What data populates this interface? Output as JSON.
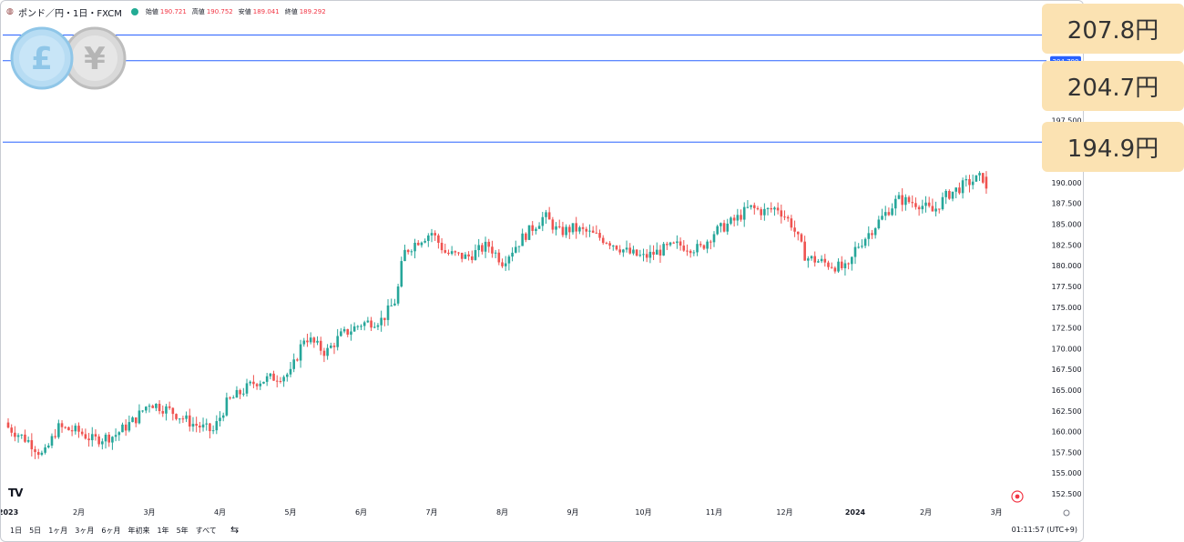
{
  "header": {
    "symbol": "ポンド／円・1日・FXCM",
    "open_label": "始値",
    "open": "190.721",
    "high_label": "高値",
    "high": "190.752",
    "low_label": "安値",
    "low": "189.041",
    "close_label": "終値",
    "close": "189.292",
    "icon": "pound-yen-flag-icon"
  },
  "footer": {
    "ranges": [
      "1日",
      "5日",
      "1ヶ月",
      "3ヶ月",
      "6ヶ月",
      "年初来",
      "1年",
      "5年",
      "すべて"
    ],
    "compare_icon": "calendar-range-icon",
    "clock": "01:11:57 (UTC+9)"
  },
  "logo": {
    "text": "TV",
    "icon": "tradingview-logo-icon"
  },
  "coins": {
    "pound": "£",
    "yen": "¥"
  },
  "callouts": [
    {
      "label": "207.8円",
      "color": "#fbe2b2"
    },
    {
      "label": "204.7円",
      "color": "#fbe2b2"
    },
    {
      "label": "194.9円",
      "color": "#fbe2b2"
    }
  ],
  "chart_data": {
    "type": "candlestick",
    "up_color": "#26a69a",
    "down_color": "#ef5350",
    "hline_color": "#2962ff",
    "ylim": [
      151.3,
      209.5
    ],
    "y_ticks": [
      152.5,
      155.0,
      157.5,
      160.0,
      162.5,
      165.0,
      167.5,
      170.0,
      172.5,
      175.0,
      177.5,
      180.0,
      182.5,
      185.0,
      187.5,
      190.0,
      197.5
    ],
    "y_tick_labels": [
      "152.500",
      "155.000",
      "157.500",
      "160.000",
      "162.500",
      "165.000",
      "167.500",
      "170.000",
      "172.500",
      "175.000",
      "177.500",
      "180.000",
      "182.500",
      "185.000",
      "187.500",
      "190.000",
      "197.500"
    ],
    "horizontal_lines": [
      207.8,
      204.7,
      194.9
    ],
    "price_badge": {
      "value": 204.7,
      "label": "204.700"
    },
    "x_ticks": [
      {
        "label": "2023",
        "bold": true,
        "month": 0
      },
      {
        "label": "2月",
        "month": 1
      },
      {
        "label": "3月",
        "month": 2
      },
      {
        "label": "4月",
        "month": 3
      },
      {
        "label": "5月",
        "month": 4
      },
      {
        "label": "6月",
        "month": 5
      },
      {
        "label": "7月",
        "month": 6
      },
      {
        "label": "8月",
        "month": 7
      },
      {
        "label": "9月",
        "month": 8
      },
      {
        "label": "10月",
        "month": 9
      },
      {
        "label": "11月",
        "month": 10
      },
      {
        "label": "12月",
        "month": 11
      },
      {
        "label": "2024",
        "bold": true,
        "month": 12
      },
      {
        "label": "2月",
        "month": 13
      },
      {
        "label": "3月",
        "month": 14
      }
    ],
    "monthly_path": [
      {
        "month": 0.0,
        "close": 160.5
      },
      {
        "month": 0.3,
        "close": 158.8
      },
      {
        "month": 0.5,
        "close": 157.0
      },
      {
        "month": 0.7,
        "close": 160.5
      },
      {
        "month": 1.0,
        "close": 160.0
      },
      {
        "month": 1.2,
        "close": 159.0
      },
      {
        "month": 1.5,
        "close": 159.5
      },
      {
        "month": 1.8,
        "close": 161.5
      },
      {
        "month": 2.0,
        "close": 163.5
      },
      {
        "month": 2.3,
        "close": 162.5
      },
      {
        "month": 2.6,
        "close": 161.0
      },
      {
        "month": 2.9,
        "close": 160.0
      },
      {
        "month": 3.1,
        "close": 163.5
      },
      {
        "month": 3.5,
        "close": 166.0
      },
      {
        "month": 4.0,
        "close": 167.0
      },
      {
        "month": 4.2,
        "close": 171.5
      },
      {
        "month": 4.5,
        "close": 169.5
      },
      {
        "month": 4.7,
        "close": 171.5
      },
      {
        "month": 5.0,
        "close": 173.0
      },
      {
        "month": 5.3,
        "close": 173.5
      },
      {
        "month": 5.5,
        "close": 176.0
      },
      {
        "month": 5.6,
        "close": 181.5
      },
      {
        "month": 5.8,
        "close": 183.0
      },
      {
        "month": 6.0,
        "close": 184.0
      },
      {
        "month": 6.2,
        "close": 181.5
      },
      {
        "month": 6.5,
        "close": 181.0
      },
      {
        "month": 6.8,
        "close": 182.5
      },
      {
        "month": 7.0,
        "close": 180.5
      },
      {
        "month": 7.3,
        "close": 183.5
      },
      {
        "month": 7.6,
        "close": 186.0
      },
      {
        "month": 7.8,
        "close": 184.0
      },
      {
        "month": 8.0,
        "close": 184.5
      },
      {
        "month": 8.2,
        "close": 184.0
      },
      {
        "month": 8.5,
        "close": 183.0
      },
      {
        "month": 8.8,
        "close": 181.5
      },
      {
        "month": 9.0,
        "close": 181.0
      },
      {
        "month": 9.3,
        "close": 182.0
      },
      {
        "month": 9.5,
        "close": 182.5
      },
      {
        "month": 9.8,
        "close": 182.0
      },
      {
        "month": 10.0,
        "close": 184.0
      },
      {
        "month": 10.3,
        "close": 185.5
      },
      {
        "month": 10.5,
        "close": 187.0
      },
      {
        "month": 10.7,
        "close": 186.5
      },
      {
        "month": 10.9,
        "close": 187.0
      },
      {
        "month": 11.1,
        "close": 185.0
      },
      {
        "month": 11.3,
        "close": 181.0
      },
      {
        "month": 11.5,
        "close": 180.5
      },
      {
        "month": 11.7,
        "close": 180.0
      },
      {
        "month": 11.9,
        "close": 179.5
      },
      {
        "month": 12.0,
        "close": 182.0
      },
      {
        "month": 12.3,
        "close": 185.0
      },
      {
        "month": 12.6,
        "close": 188.0
      },
      {
        "month": 12.9,
        "close": 187.5
      },
      {
        "month": 13.1,
        "close": 186.5
      },
      {
        "month": 13.3,
        "close": 188.5
      },
      {
        "month": 13.6,
        "close": 190.0
      },
      {
        "month": 13.8,
        "close": 190.7
      },
      {
        "month": 13.9,
        "close": 189.3
      }
    ],
    "last_candle": {
      "open": 190.721,
      "high": 190.752,
      "low": 189.041,
      "close": 189.292
    },
    "grid": false
  }
}
